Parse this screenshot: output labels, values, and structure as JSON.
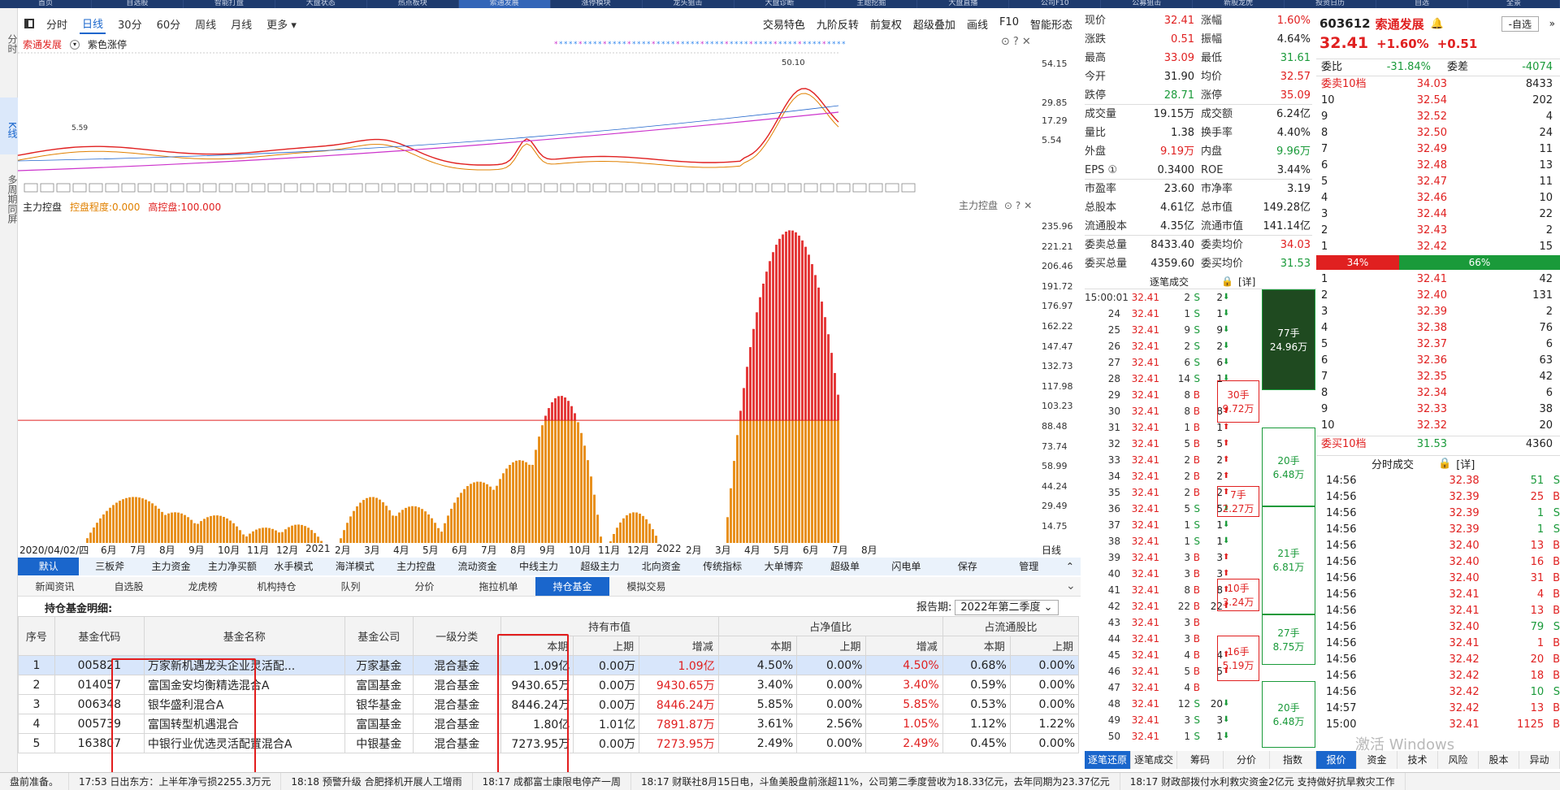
{
  "top_nav": [
    "首页",
    "自选股",
    "智能打盘",
    "大盘状态",
    "热点板块",
    "索通发展",
    "涨停模块",
    "龙头狙击",
    "大盘诊断",
    "主题挖掘",
    "大盘直播",
    "公司F10",
    "公募狙击",
    "新股龙虎",
    "投资日历",
    "自选",
    "全景"
  ],
  "left_bar": [
    "分时",
    "K线",
    "多周期同屏"
  ],
  "chart_toolbar": {
    "items": [
      "分时",
      "日线",
      "30分",
      "60分",
      "周线",
      "月线",
      "更多"
    ],
    "selected": "日线",
    "right_items": [
      "交易特色",
      "九阶反转",
      "前复权",
      "超级叠加",
      "画线",
      "F10",
      "智能形态"
    ]
  },
  "kline": {
    "stock": "索通发展",
    "indicator_label": "紫色涨停",
    "high_label": "50.10",
    "low_label": "5.59",
    "y_ticks": [
      "54.15",
      "29.85",
      "17.29",
      "5.54"
    ]
  },
  "control": {
    "title": "主力控盘",
    "degree_label": "控盘程度:0.000",
    "high_label": "高控盘:100.000",
    "right_title": "主力控盘",
    "y_ticks": [
      "235.96",
      "221.21",
      "206.46",
      "191.72",
      "176.97",
      "162.22",
      "147.47",
      "132.73",
      "117.98",
      "103.23",
      "88.48",
      "73.74",
      "58.99",
      "44.24",
      "29.49",
      "14.75"
    ],
    "x_labels": [
      "2020/04/02/四",
      "6月",
      "7月",
      "8月",
      "9月",
      "10月",
      "11月",
      "12月",
      "2021",
      "2月",
      "3月",
      "4月",
      "5月",
      "6月",
      "7月",
      "8月",
      "9月",
      "10月",
      "11月",
      "12月",
      "2022",
      "2月",
      "3月",
      "4月",
      "5月",
      "6月",
      "7月",
      "8月"
    ],
    "x_right": "日线"
  },
  "func_tabs": [
    "默认",
    "三板斧",
    "主力资金",
    "主力净买额",
    "水手模式",
    "海洋模式",
    "主力控盘",
    "流动资金",
    "中线主力",
    "超级主力",
    "北向资金",
    "传统指标",
    "大单博弈",
    "超级单",
    "闪电单",
    "保存",
    "管理"
  ],
  "sub_tabs": [
    "新闻资讯",
    "自选股",
    "龙虎榜",
    "机构持仓",
    "队列",
    "分价",
    "拖拉机单",
    "持仓基金",
    "模拟交易"
  ],
  "holdings": {
    "title": "持仓基金明细:",
    "report_label": "报告期:",
    "report_value": "2022年第二季度",
    "group_headers": [
      "持有市值",
      "占净值比",
      "占流通股比"
    ],
    "headers": [
      "序号",
      "基金代码",
      "基金名称",
      "基金公司",
      "一级分类",
      "本期",
      "上期",
      "增减",
      "本期",
      "上期",
      "增减",
      "本期",
      "上期"
    ],
    "rows": [
      [
        "1",
        "005821",
        "万家新机遇龙头企业灵活配...",
        "万家基金",
        "混合基金",
        "1.09亿",
        "0.00万",
        "1.09亿",
        "4.50%",
        "0.00%",
        "4.50%",
        "0.68%",
        "0.00%"
      ],
      [
        "2",
        "014057",
        "富国金安均衡精选混合A",
        "富国基金",
        "混合基金",
        "9430.65万",
        "0.00万",
        "9430.65万",
        "3.40%",
        "0.00%",
        "3.40%",
        "0.59%",
        "0.00%"
      ],
      [
        "3",
        "006348",
        "银华盛利混合A",
        "银华基金",
        "混合基金",
        "8446.24万",
        "0.00万",
        "8446.24万",
        "5.85%",
        "0.00%",
        "5.85%",
        "0.53%",
        "0.00%"
      ],
      [
        "4",
        "005739",
        "富国转型机遇混合",
        "富国基金",
        "混合基金",
        "1.80亿",
        "1.01亿",
        "7891.87万",
        "3.61%",
        "2.56%",
        "1.05%",
        "1.12%",
        "1.22%"
      ],
      [
        "5",
        "163807",
        "中银行业优选灵活配置混合A",
        "中银基金",
        "混合基金",
        "7273.95万",
        "0.00万",
        "7273.95万",
        "2.49%",
        "0.00%",
        "2.49%",
        "0.45%",
        "0.00%"
      ]
    ]
  },
  "status_bar": [
    "盘前准备。",
    "17:53 日出东方：上半年净亏损2255.3万元",
    "18:18 预警升级 合肥择机开展人工增雨",
    "18:17 成都富士康限电停产一周",
    "18:17 财联社8月15日电，斗鱼美股盘前涨超11%，公司第二季度营收为18.33亿元，去年同期为23.37亿元",
    "18:17 财政部拨付水利救灾资金2亿元 支持做好抗旱救灾工作"
  ],
  "quote": {
    "rows": [
      [
        "现价",
        "32.41",
        "涨幅",
        "1.60%"
      ],
      [
        "涨跌",
        "0.51",
        "振幅",
        "4.64%"
      ],
      [
        "最高",
        "33.09",
        "最低",
        "31.61"
      ],
      [
        "今开",
        "31.90",
        "均价",
        "32.57"
      ],
      [
        "跌停",
        "28.71",
        "涨停",
        "35.09"
      ],
      [
        "成交量",
        "19.15万",
        "成交额",
        "6.24亿"
      ],
      [
        "量比",
        "1.38",
        "换手率",
        "4.40%"
      ],
      [
        "外盘",
        "9.19万",
        "内盘",
        "9.96万"
      ],
      [
        "EPS ①",
        "0.3400",
        "ROE",
        "3.44%"
      ],
      [
        "市盈率",
        "23.60",
        "市净率",
        "3.19"
      ],
      [
        "总股本",
        "4.61亿",
        "总市值",
        "149.28亿"
      ],
      [
        "流通股本",
        "4.35亿",
        "流通市值",
        "141.14亿"
      ],
      [
        "委卖总量",
        "8433.40",
        "委卖均价",
        "34.03"
      ],
      [
        "委买总量",
        "4359.60",
        "委买均价",
        "31.53"
      ]
    ],
    "tick_title": "逐笔成交",
    "tick_detail": "[详]"
  },
  "ticks": [
    [
      "15:00:01",
      "32.41",
      "2",
      "S",
      "2"
    ],
    [
      "24",
      "32.41",
      "1",
      "S",
      "1"
    ],
    [
      "25",
      "32.41",
      "9",
      "S",
      "9"
    ],
    [
      "26",
      "32.41",
      "2",
      "S",
      "2"
    ],
    [
      "27",
      "32.41",
      "6",
      "S",
      "6"
    ],
    [
      "28",
      "32.41",
      "14",
      "S",
      "1"
    ],
    [
      "29",
      "32.41",
      "8",
      "B",
      ""
    ],
    [
      "30",
      "32.41",
      "8",
      "B",
      "8"
    ],
    [
      "31",
      "32.41",
      "1",
      "B",
      "1"
    ],
    [
      "32",
      "32.41",
      "5",
      "B",
      "5"
    ],
    [
      "33",
      "32.41",
      "2",
      "B",
      "2"
    ],
    [
      "34",
      "32.41",
      "2",
      "B",
      "2"
    ],
    [
      "35",
      "32.41",
      "2",
      "B",
      "2"
    ],
    [
      "36",
      "32.41",
      "5",
      "S",
      "5"
    ],
    [
      "37",
      "32.41",
      "1",
      "S",
      "1"
    ],
    [
      "38",
      "32.41",
      "1",
      "S",
      "1"
    ],
    [
      "39",
      "32.41",
      "3",
      "B",
      "3"
    ],
    [
      "40",
      "32.41",
      "3",
      "B",
      "3"
    ],
    [
      "41",
      "32.41",
      "8",
      "B",
      "8"
    ],
    [
      "42",
      "32.41",
      "22",
      "B",
      "22"
    ],
    [
      "43",
      "32.41",
      "3",
      "B",
      ""
    ],
    [
      "44",
      "32.41",
      "3",
      "B",
      ""
    ],
    [
      "45",
      "32.41",
      "4",
      "B",
      "4"
    ],
    [
      "46",
      "32.41",
      "5",
      "B",
      "5"
    ],
    [
      "47",
      "32.41",
      "4",
      "B",
      ""
    ],
    [
      "48",
      "32.41",
      "12",
      "S",
      "20"
    ],
    [
      "49",
      "32.41",
      "3",
      "S",
      "3"
    ],
    [
      "50",
      "32.41",
      "1",
      "S",
      "1"
    ]
  ],
  "order_boxes": [
    {
      "l1": "77手",
      "l2": "24.96万"
    },
    {
      "l1": "30手",
      "l2": "9.72万"
    },
    {
      "l1": "20手",
      "l2": "6.48万"
    },
    {
      "l1": "7手",
      "l2": "2.27万"
    },
    {
      "l1": "21手",
      "l2": "6.81万"
    },
    {
      "l1": "10手",
      "l2": "3.24万"
    },
    {
      "l1": "27手",
      "l2": "8.75万"
    },
    {
      "l1": "16手",
      "l2": "5.19万"
    },
    {
      "l1": "20手",
      "l2": "6.48万"
    }
  ],
  "right_panel": {
    "code": "603612",
    "name": "索通发展",
    "self_btn": "-自选",
    "price": "32.41",
    "pct": "+1.60%",
    "chg": "+0.51",
    "weibi_label": "委比",
    "weibi": "-31.84%",
    "weicha_label": "委差",
    "weicha": "-4074",
    "sell_title": "委卖10档",
    "sell_avg": "34.03",
    "sell_total": "8433",
    "sell": [
      [
        "10",
        "32.54",
        "202"
      ],
      [
        "9",
        "32.52",
        "4"
      ],
      [
        "8",
        "32.50",
        "24"
      ],
      [
        "7",
        "32.49",
        "11"
      ],
      [
        "6",
        "32.48",
        "13"
      ],
      [
        "5",
        "32.47",
        "11"
      ],
      [
        "4",
        "32.46",
        "10"
      ],
      [
        "3",
        "32.44",
        "22"
      ],
      [
        "2",
        "32.43",
        "2"
      ],
      [
        "1",
        "32.42",
        "15"
      ]
    ],
    "ratio_sell": "34%",
    "ratio_buy": "66%",
    "buy": [
      [
        "1",
        "32.41",
        "42"
      ],
      [
        "2",
        "32.40",
        "131"
      ],
      [
        "3",
        "32.39",
        "2"
      ],
      [
        "4",
        "32.38",
        "76"
      ],
      [
        "5",
        "32.37",
        "6"
      ],
      [
        "6",
        "32.36",
        "63"
      ],
      [
        "7",
        "32.35",
        "42"
      ],
      [
        "8",
        "32.34",
        "6"
      ],
      [
        "9",
        "32.33",
        "38"
      ],
      [
        "10",
        "32.32",
        "20"
      ]
    ],
    "buy_title": "委买10档",
    "buy_avg": "31.53",
    "buy_total": "4360",
    "fenshi_title": "分时成交",
    "fenshi_detail": "[详]",
    "fenshi": [
      [
        "14:56",
        "32.38",
        "51",
        "S"
      ],
      [
        "14:56",
        "32.39",
        "25",
        "B"
      ],
      [
        "14:56",
        "32.39",
        "1",
        "S"
      ],
      [
        "14:56",
        "32.39",
        "1",
        "S"
      ],
      [
        "14:56",
        "32.40",
        "13",
        "B"
      ],
      [
        "14:56",
        "32.40",
        "16",
        "B"
      ],
      [
        "14:56",
        "32.40",
        "31",
        "B"
      ],
      [
        "14:56",
        "32.41",
        "4",
        "B"
      ],
      [
        "14:56",
        "32.41",
        "13",
        "B"
      ],
      [
        "14:56",
        "32.40",
        "79",
        "S"
      ],
      [
        "14:56",
        "32.41",
        "1",
        "B"
      ],
      [
        "14:56",
        "32.42",
        "20",
        "B"
      ],
      [
        "14:56",
        "32.42",
        "18",
        "B"
      ],
      [
        "14:56",
        "32.42",
        "10",
        "S"
      ],
      [
        "14:57",
        "32.42",
        "13",
        "B"
      ],
      [
        "15:00",
        "32.41",
        "1125",
        "B"
      ]
    ]
  },
  "bottom_tabs_left": [
    "逐笔还原",
    "逐笔成交",
    "筹码",
    "分价",
    "指数"
  ],
  "bottom_tabs_right": [
    "报价",
    "资金",
    "技术",
    "风险",
    "股本",
    "异动"
  ],
  "watermark": "激活 Windows"
}
